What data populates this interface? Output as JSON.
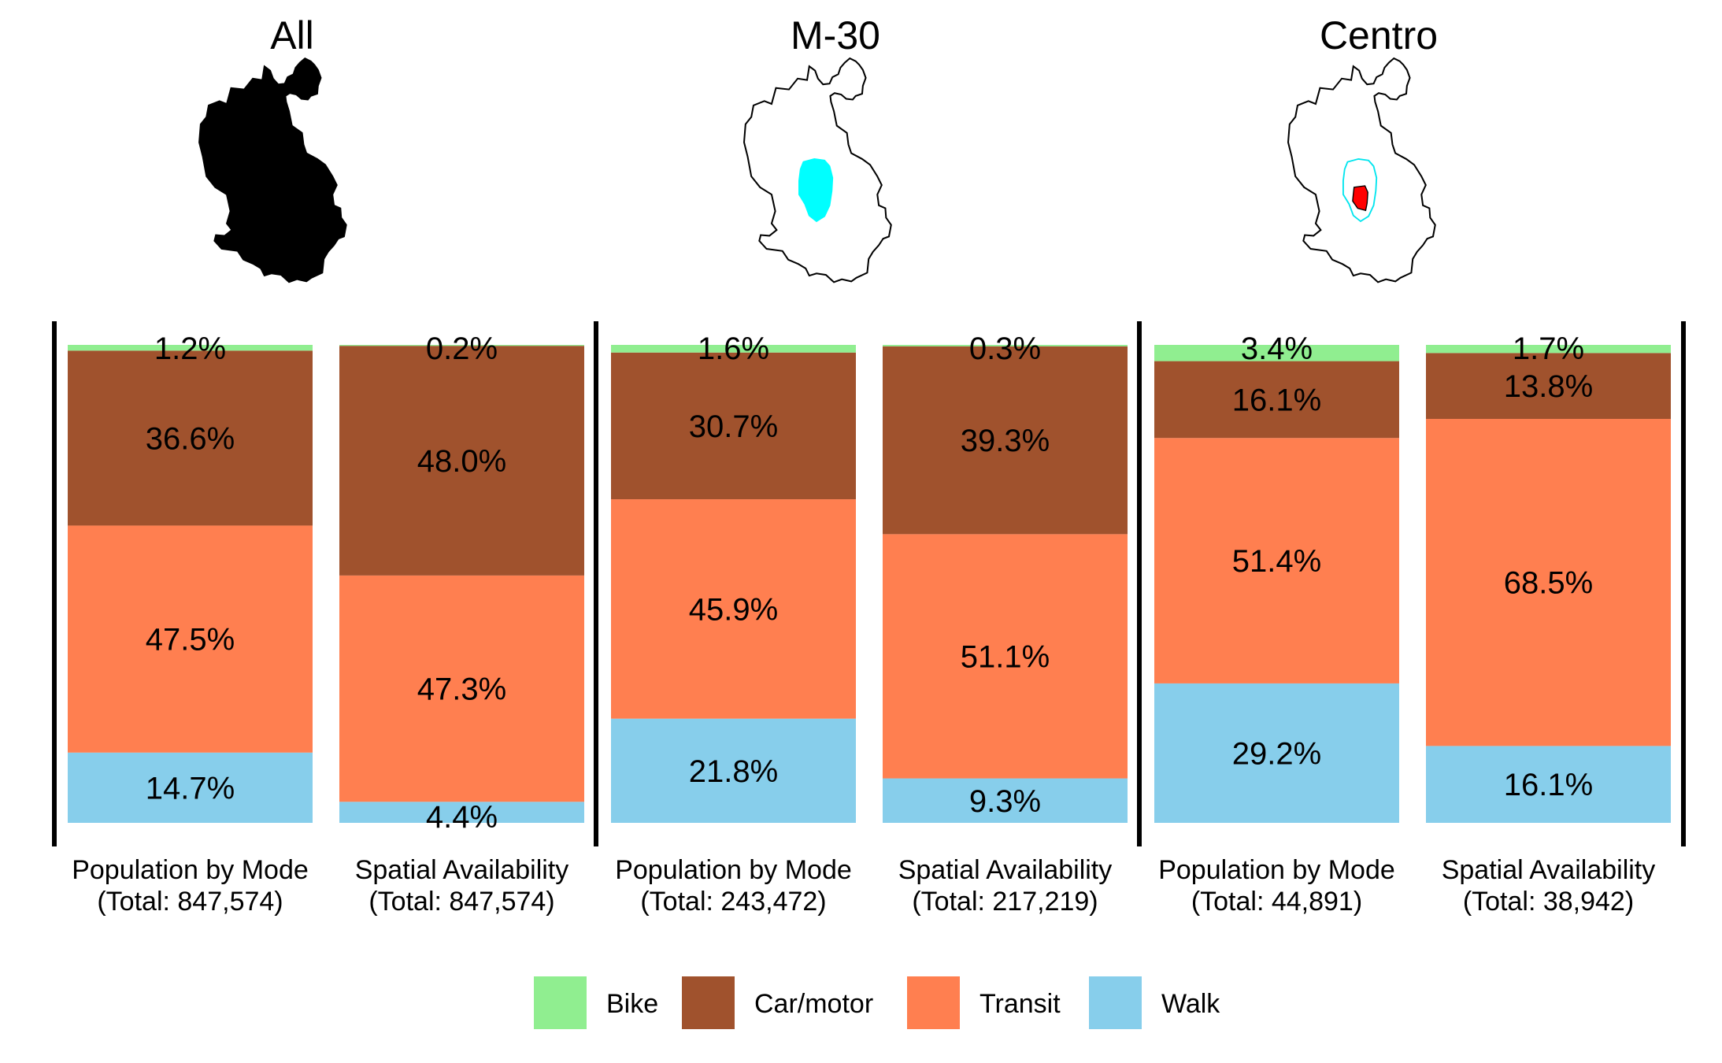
{
  "chart_data": {
    "type": "bar",
    "stacked": true,
    "normalized": true,
    "unit": "%",
    "legend_position": "bottom",
    "colors": {
      "Bike": "#90ee90",
      "Car/motor": "#a0522d",
      "Transit": "#ff7f50",
      "Walk": "#87ceeb"
    },
    "panels": [
      {
        "title": "All",
        "map_highlight": "all",
        "bars": [
          {
            "label": "Population by Mode",
            "total_text": "(Total: 847,574)",
            "segments": [
              {
                "mode": "Walk",
                "value": 14.7,
                "label": "14.7%"
              },
              {
                "mode": "Transit",
                "value": 47.5,
                "label": "47.5%"
              },
              {
                "mode": "Car/motor",
                "value": 36.6,
                "label": "36.6%"
              },
              {
                "mode": "Bike",
                "value": 1.2,
                "label": "1.2%"
              }
            ]
          },
          {
            "label": "Spatial Availability",
            "total_text": "(Total: 847,574)",
            "segments": [
              {
                "mode": "Walk",
                "value": 4.4,
                "label": "4.4%"
              },
              {
                "mode": "Transit",
                "value": 47.3,
                "label": "47.3%"
              },
              {
                "mode": "Car/motor",
                "value": 48.0,
                "label": "48.0%"
              },
              {
                "mode": "Bike",
                "value": 0.2,
                "label": "0.2%"
              }
            ]
          }
        ]
      },
      {
        "title": "M-30",
        "map_highlight": "m30",
        "bars": [
          {
            "label": "Population by Mode",
            "total_text": "(Total: 243,472)",
            "segments": [
              {
                "mode": "Walk",
                "value": 21.8,
                "label": "21.8%"
              },
              {
                "mode": "Transit",
                "value": 45.9,
                "label": "45.9%"
              },
              {
                "mode": "Car/motor",
                "value": 30.7,
                "label": "30.7%"
              },
              {
                "mode": "Bike",
                "value": 1.6,
                "label": "1.6%"
              }
            ]
          },
          {
            "label": "Spatial Availability",
            "total_text": "(Total: 217,219)",
            "segments": [
              {
                "mode": "Walk",
                "value": 9.3,
                "label": "9.3%"
              },
              {
                "mode": "Transit",
                "value": 51.1,
                "label": "51.1%"
              },
              {
                "mode": "Car/motor",
                "value": 39.3,
                "label": "39.3%"
              },
              {
                "mode": "Bike",
                "value": 0.3,
                "label": "0.3%"
              }
            ]
          }
        ]
      },
      {
        "title": "Centro",
        "map_highlight": "centro",
        "bars": [
          {
            "label": "Population by Mode",
            "total_text": "(Total: 44,891)",
            "segments": [
              {
                "mode": "Walk",
                "value": 29.2,
                "label": "29.2%"
              },
              {
                "mode": "Transit",
                "value": 51.4,
                "label": "51.4%"
              },
              {
                "mode": "Car/motor",
                "value": 16.1,
                "label": "16.1%"
              },
              {
                "mode": "Bike",
                "value": 3.4,
                "label": "3.4%"
              }
            ]
          },
          {
            "label": "Spatial Availability",
            "total_text": "(Total: 38,942)",
            "segments": [
              {
                "mode": "Walk",
                "value": 16.1,
                "label": "16.1%"
              },
              {
                "mode": "Transit",
                "value": 68.5,
                "label": "68.5%"
              },
              {
                "mode": "Car/motor",
                "value": 13.8,
                "label": "13.8%"
              },
              {
                "mode": "Bike",
                "value": 1.7,
                "label": "1.7%"
              }
            ]
          }
        ]
      }
    ],
    "legend": [
      "Bike",
      "Car/motor",
      "Transit",
      "Walk"
    ]
  }
}
